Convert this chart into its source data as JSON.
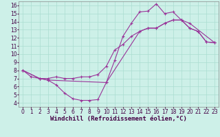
{
  "xlabel": "Windchill (Refroidissement éolien,°C)",
  "xlim": [
    -0.5,
    23.5
  ],
  "ylim": [
    3.5,
    16.5
  ],
  "xticks": [
    0,
    1,
    2,
    3,
    4,
    5,
    6,
    7,
    8,
    9,
    10,
    11,
    12,
    13,
    14,
    15,
    16,
    17,
    18,
    19,
    20,
    21,
    22,
    23
  ],
  "yticks": [
    4,
    5,
    6,
    7,
    8,
    9,
    10,
    11,
    12,
    13,
    14,
    15,
    16
  ],
  "bg_color": "#cdf0e8",
  "grid_color": "#aaddd0",
  "line_color": "#993399",
  "curve1_x": [
    0,
    1,
    2,
    3,
    4,
    5,
    6,
    7,
    8,
    9,
    10,
    11,
    12,
    13,
    14,
    15,
    16,
    17,
    18,
    19,
    20,
    21,
    22,
    23
  ],
  "curve1_y": [
    8.0,
    7.2,
    7.0,
    6.8,
    6.2,
    5.2,
    4.5,
    4.3,
    4.3,
    4.4,
    6.5,
    9.2,
    12.2,
    13.8,
    15.2,
    15.3,
    16.2,
    15.0,
    15.2,
    14.2,
    13.2,
    12.8,
    11.5,
    11.4
  ],
  "curve2_x": [
    0,
    2,
    3,
    10,
    14,
    15,
    16,
    17,
    18,
    19,
    20,
    23
  ],
  "curve2_y": [
    8.0,
    7.0,
    6.8,
    6.5,
    12.8,
    13.2,
    13.2,
    13.8,
    14.2,
    14.2,
    13.8,
    11.4
  ],
  "curve3_x": [
    0,
    2,
    3,
    4,
    5,
    6,
    7,
    8,
    9,
    10,
    11,
    12,
    13,
    14,
    15,
    16,
    17,
    18,
    19,
    20,
    21,
    22,
    23
  ],
  "curve3_y": [
    8.0,
    7.0,
    7.0,
    7.2,
    7.0,
    7.0,
    7.2,
    7.2,
    7.5,
    8.5,
    10.5,
    11.2,
    12.2,
    12.8,
    13.2,
    13.2,
    13.8,
    14.2,
    14.2,
    13.2,
    12.8,
    11.5,
    11.4
  ],
  "font_size_tick": 5.5,
  "font_size_label": 6.5
}
